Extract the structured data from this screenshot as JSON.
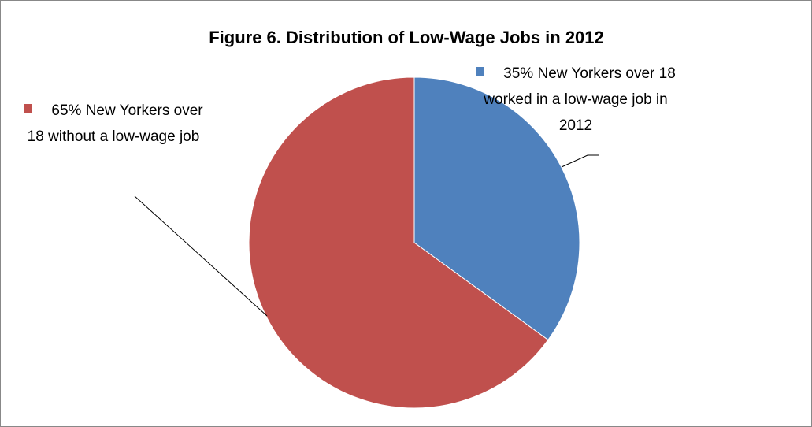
{
  "chart_data": {
    "type": "pie",
    "title": "Figure 6. Distribution of Low-Wage Jobs in 2012",
    "categories": [
      "New Yorkers over 18 worked in a low-wage job in 2012",
      "New Yorkers over 18 without a low-wage job"
    ],
    "values": [
      35,
      65
    ],
    "value_labels": [
      "35%",
      "65%"
    ],
    "colors": [
      "#4f81bd",
      "#c0504d"
    ]
  }
}
